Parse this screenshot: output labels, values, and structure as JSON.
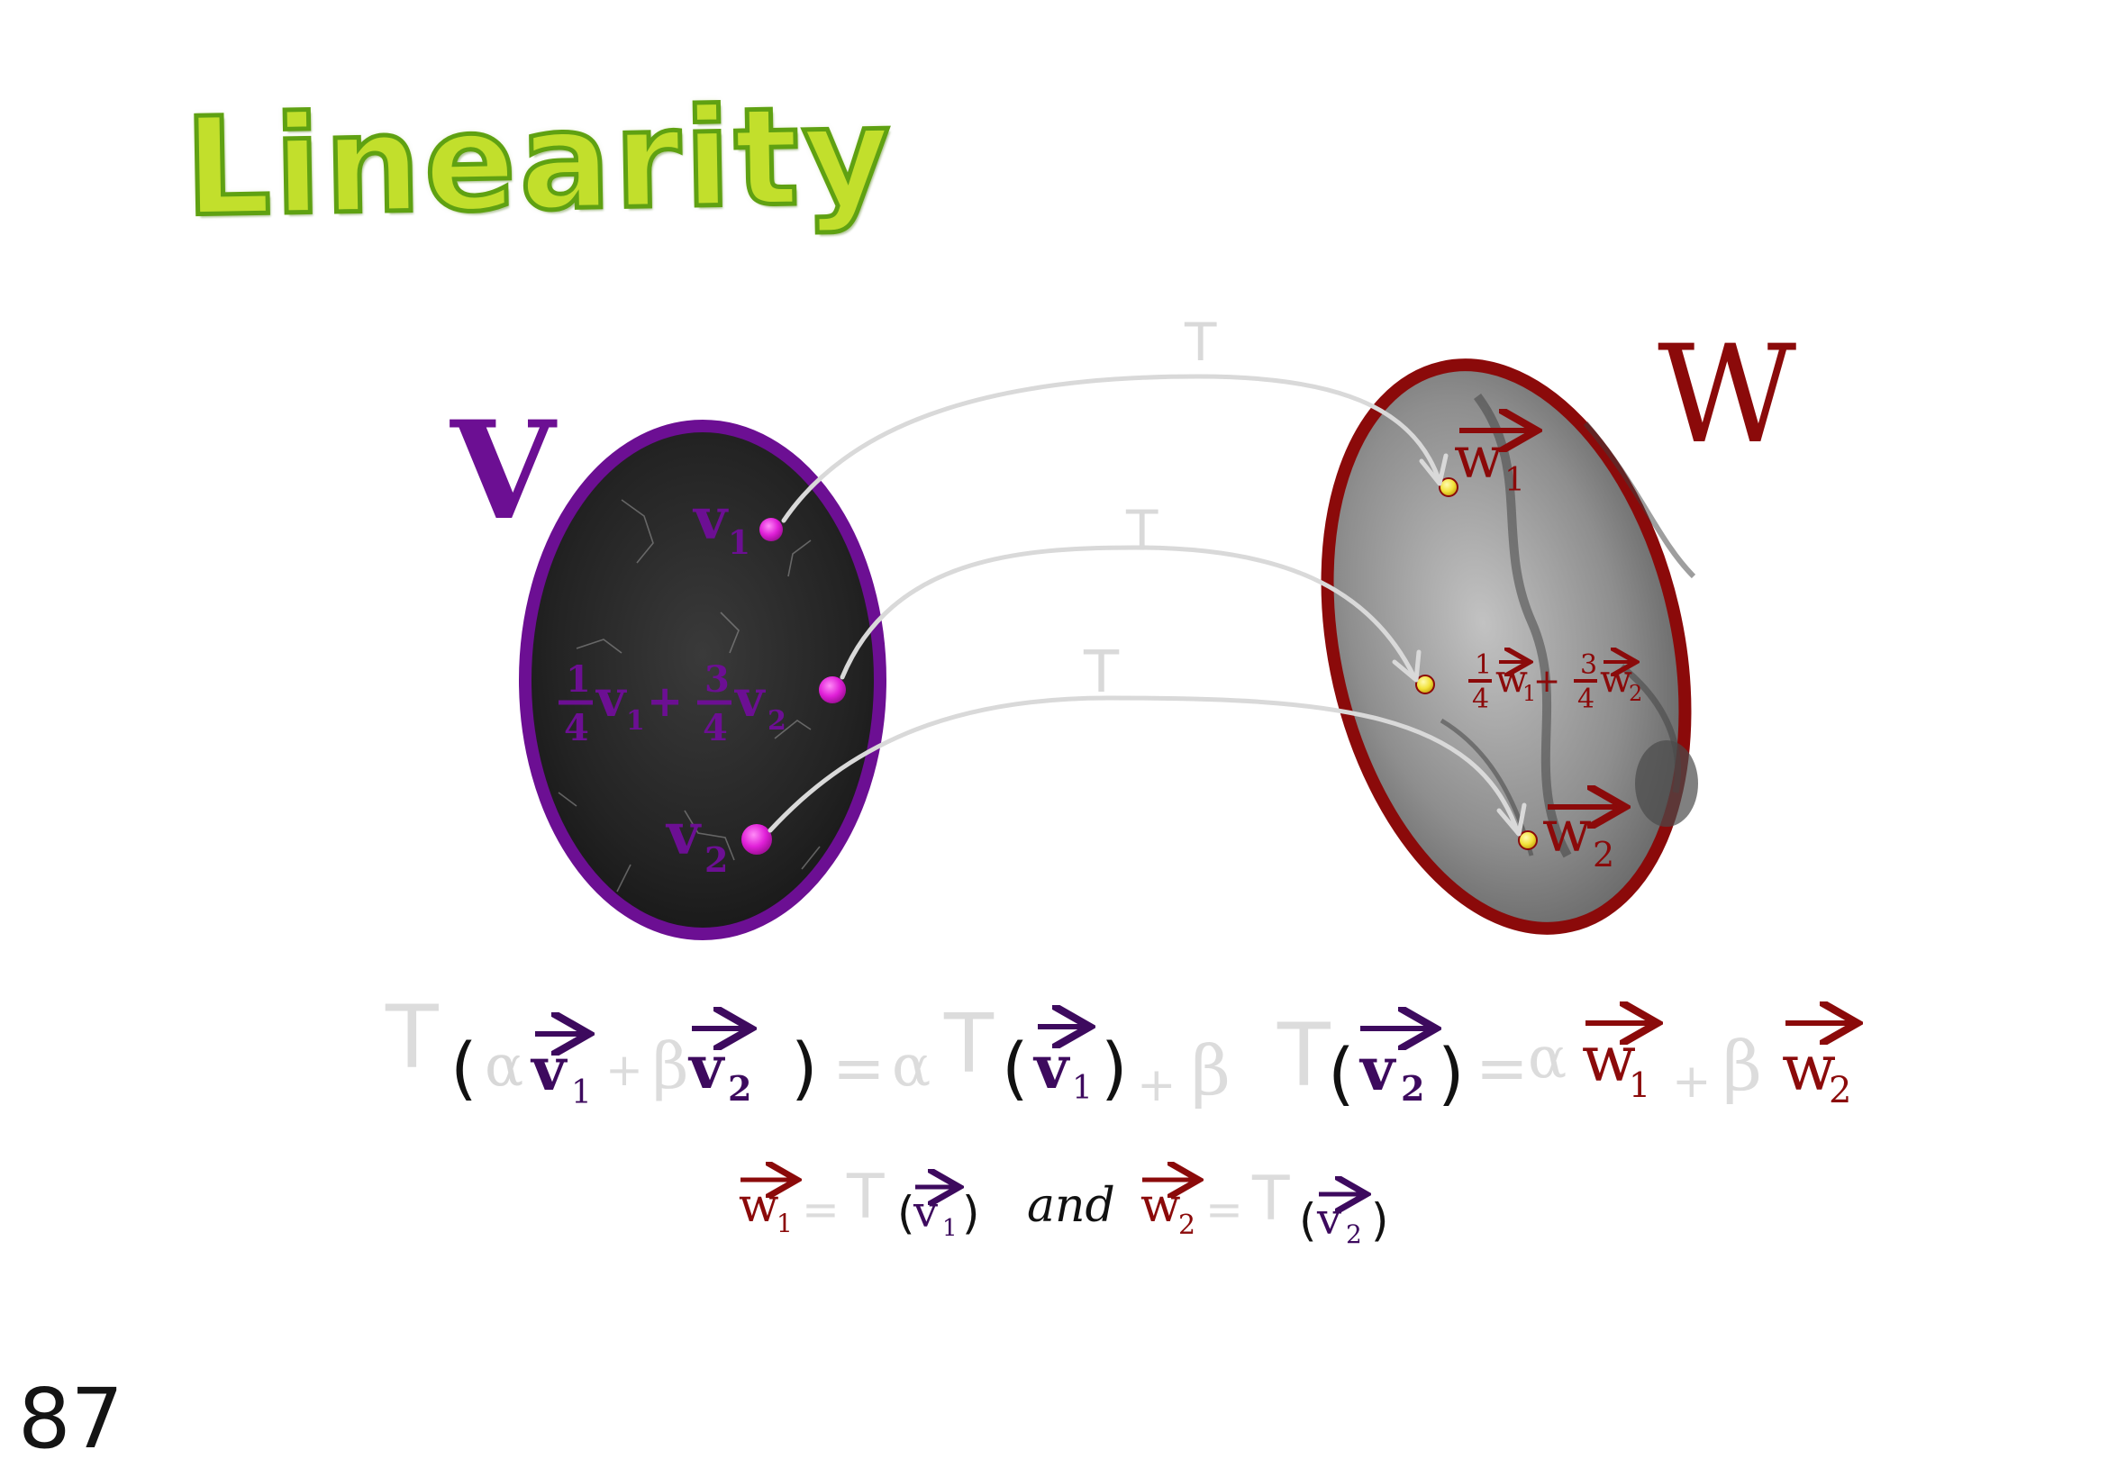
{
  "title": "Linearity",
  "page_number": "87",
  "colors": {
    "title_fill": "#c2df2c",
    "title_outline": "#5fa112",
    "space_v": "#6c0f93",
    "space_w": "#8b0a0a",
    "map_arrow": "#d9d9d9",
    "point_v": "#e020d8",
    "point_w": "#f2e23a",
    "text_black": "#111111"
  },
  "space_v": {
    "label": "V",
    "points": [
      {
        "label": "v",
        "sub": "1"
      },
      {
        "coef1_num": "1",
        "coef1_den": "4",
        "v1": "v",
        "v1_sub": "1",
        "plus": "+",
        "coef2_num": "3",
        "coef2_den": "4",
        "v2": "v",
        "v2_sub": "2"
      },
      {
        "label": "v",
        "sub": "2"
      }
    ]
  },
  "space_w": {
    "label": "W",
    "points": [
      {
        "label": "w",
        "sub": "1"
      },
      {
        "coef1_num": "1",
        "coef1_den": "4",
        "w1": "w",
        "w1_sub": "1",
        "plus": "+",
        "coef2_num": "3",
        "coef2_den": "4",
        "w2": "w",
        "w2_sub": "2"
      },
      {
        "label": "w",
        "sub": "2"
      }
    ]
  },
  "map_labels": [
    "T",
    "T",
    "T"
  ],
  "equation": {
    "T1": "T",
    "lp1": "(",
    "alpha1": "α",
    "v1": "v",
    "v1_sub": "1",
    "plus1": "+",
    "beta1": "β",
    "v2": "v",
    "v2_sub": "2",
    "rp1": ")",
    "eq1": "=",
    "alpha2": "α",
    "T2": "T",
    "lp2": "(",
    "v1b": "v",
    "v1b_sub": "1",
    "rp2": ")",
    "plus2": "+",
    "beta2": "β",
    "T3": "T",
    "lp3": "(",
    "v2b": "v",
    "v2b_sub": "2",
    "rp3": ")",
    "eq2": "=",
    "alpha3": "α",
    "w1": "w",
    "w1_sub": "1",
    "plus3": "+",
    "beta3": "β",
    "w2": "w",
    "w2_sub": "2"
  },
  "definition": {
    "w1": "w",
    "w1_sub": "1",
    "eq1": "=",
    "T1": "T",
    "lp1": "(",
    "v1": "v",
    "v1_sub": "1",
    "rp1": ")",
    "and": "and",
    "w2": "w",
    "w2_sub": "2",
    "eq2": "=",
    "T2": "T",
    "lp2": "(",
    "v2": "v",
    "v2_sub": "2",
    "rp2": ")"
  }
}
